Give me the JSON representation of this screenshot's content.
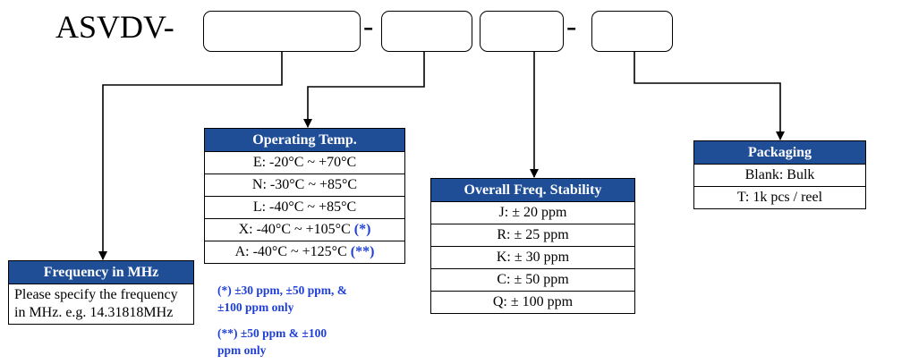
{
  "part_number": {
    "prefix": "ASVDV-",
    "separators": [
      "-",
      "-"
    ]
  },
  "frequency": {
    "header": "Frequency in MHz",
    "description": "Please specify the frequency in MHz. e.g. 14.31818MHz"
  },
  "operating_temp": {
    "header": "Operating Temp.",
    "options": [
      {
        "text": "E: -20°C ~ +70°C",
        "mark": ""
      },
      {
        "text": "N: -30°C ~ +85°C",
        "mark": ""
      },
      {
        "text": "L: -40°C ~ +85°C",
        "mark": ""
      },
      {
        "text": "X: -40°C ~ +105°C",
        "mark": "(*)"
      },
      {
        "text": "A: -40°C ~ +125°C",
        "mark": "(**)"
      }
    ],
    "notes": [
      {
        "line1": "(*) ±30 ppm, ±50 ppm, &",
        "line2": "±100 ppm only"
      },
      {
        "line1": "(**) ±50 ppm & ±100",
        "line2": "ppm only"
      }
    ]
  },
  "stability": {
    "header": "Overall Freq. Stability",
    "options": [
      "J: ± 20 ppm",
      "R: ± 25 ppm",
      "K: ± 30 ppm",
      "C: ± 50 ppm",
      "Q: ± 100 ppm"
    ]
  },
  "packaging": {
    "header": "Packaging",
    "options": [
      "Blank: Bulk",
      "T: 1k pcs / reel"
    ]
  },
  "colors": {
    "header_bg": "#1f4e96",
    "note_text": "#1f3fd6"
  }
}
